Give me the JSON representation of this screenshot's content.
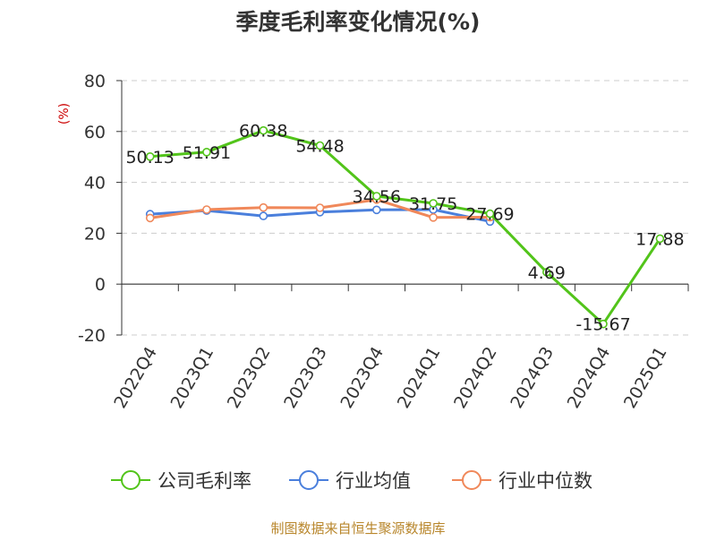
{
  "chart_data": {
    "type": "line",
    "title": "季度毛利率变化情况(%)",
    "ylabel": "(%)",
    "ylim": [
      -20,
      80
    ],
    "yticks": [
      -20,
      0,
      20,
      40,
      60,
      80
    ],
    "grid": true,
    "legend_position": "bottom",
    "categories": [
      "2022Q4",
      "2023Q1",
      "2023Q2",
      "2023Q3",
      "2023Q4",
      "2024Q1",
      "2024Q2",
      "2024Q3",
      "2024Q4",
      "2025Q1"
    ],
    "series": [
      {
        "name": "公司毛利率",
        "color": "#52c41a",
        "labeled": true,
        "values": [
          50.13,
          51.91,
          60.38,
          54.48,
          34.56,
          31.75,
          27.69,
          4.69,
          -15.67,
          17.88
        ]
      },
      {
        "name": "行业均值",
        "color": "#4a7fdc",
        "labeled": false,
        "values": [
          27.5,
          28.9,
          26.8,
          28.3,
          29.2,
          29.3,
          24.6,
          null,
          null,
          null
        ]
      },
      {
        "name": "行业中位数",
        "color": "#f0885a",
        "labeled": false,
        "values": [
          26.0,
          29.3,
          30.1,
          30.0,
          33.2,
          26.2,
          26.3,
          null,
          null,
          null
        ]
      }
    ]
  },
  "source": "制图数据来自恒生聚源数据库"
}
